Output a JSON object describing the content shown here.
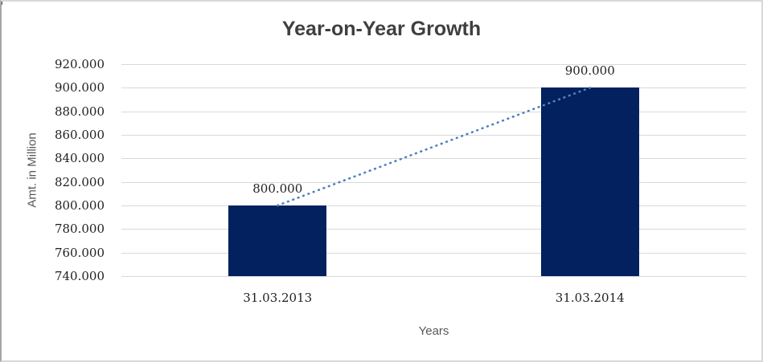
{
  "chart_data": {
    "type": "bar",
    "title": "Year-on-Year Growth",
    "xlabel": "Years",
    "ylabel": "Amt. in Million",
    "categories": [
      "31.03.2013",
      "31.03.2014"
    ],
    "values": [
      800,
      900
    ],
    "point_labels": [
      "800.000",
      "900.000"
    ],
    "ylim": [
      740,
      920
    ],
    "ytick_step": 20,
    "ytick_labels": [
      "920.000",
      "900.000",
      "880.000",
      "860.000",
      "840.000",
      "820.000",
      "800.000",
      "780.000",
      "760.000",
      "740.000"
    ],
    "grid": true,
    "legend": false,
    "trendline": {
      "type": "linear",
      "style": "dotted",
      "from_value": 800,
      "to_value": 900
    },
    "colors": {
      "bar": "#02215E",
      "trendline": "#4F81BD",
      "gridline": "#D9D9D9",
      "title_text": "#3F3F3F",
      "axis_title_text": "#595959",
      "tick_text": "#1F1F1F"
    }
  }
}
